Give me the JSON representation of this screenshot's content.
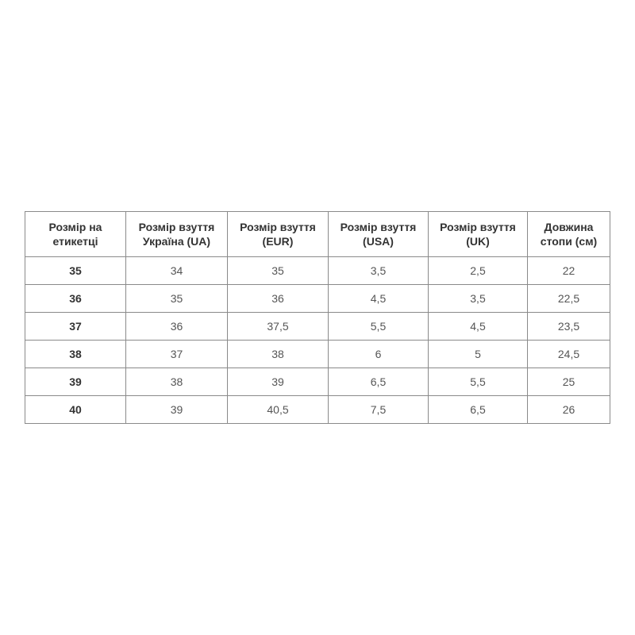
{
  "table": {
    "headers": [
      "Розмір на етикетці",
      "Розмір взуття Україна (UA)",
      "Розмір взуття (EUR)",
      "Розмір взуття (USA)",
      "Розмір взуття (UK)",
      "Довжина стопи (см)"
    ],
    "rows": [
      [
        "35",
        "34",
        "35",
        "3,5",
        "2,5",
        "22"
      ],
      [
        "36",
        "35",
        "36",
        "4,5",
        "3,5",
        "22,5"
      ],
      [
        "37",
        "36",
        "37,5",
        "5,5",
        "4,5",
        "23,5"
      ],
      [
        "38",
        "37",
        "38",
        "6",
        "5",
        "24,5"
      ],
      [
        "39",
        "38",
        "39",
        "6,5",
        "5,5",
        "25"
      ],
      [
        "40",
        "39",
        "40,5",
        "7,5",
        "6,5",
        "26"
      ]
    ]
  }
}
